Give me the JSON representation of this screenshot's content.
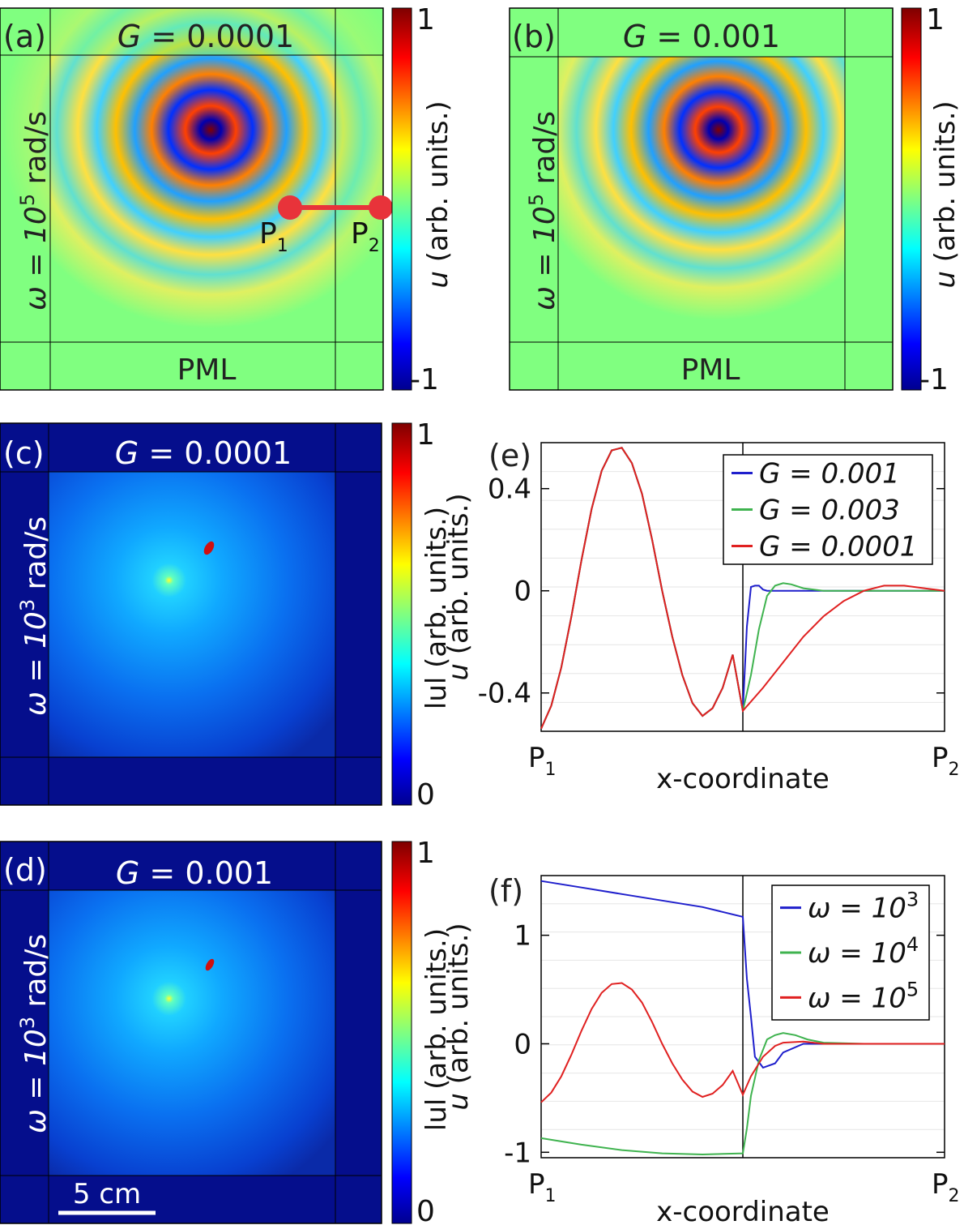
{
  "panels": {
    "a": {
      "label": "(a)",
      "title_var": "G",
      "title_rest": " = 0.0001",
      "omega_label": "ω = 10",
      "omega_exp": "5",
      "omega_unit": " rad/s",
      "pml_label": "PML",
      "p1": "P",
      "p1_sub": "1",
      "p2": "P",
      "p2_sub": "2"
    },
    "b": {
      "label": "(b)",
      "title_var": "G",
      "title_rest": " = 0.001",
      "omega_label": "ω = 10",
      "omega_exp": "5",
      "omega_unit": " rad/s",
      "pml_label": "PML"
    },
    "c": {
      "label": "(c)",
      "title_var": "G",
      "title_rest": " = 0.0001",
      "omega_label": "ω = 10",
      "omega_exp": "3",
      "omega_unit": " rad/s"
    },
    "d": {
      "label": "(d)",
      "title_var": "G",
      "title_rest": " = 0.001",
      "omega_label": "ω = 10",
      "omega_exp": "3",
      "omega_unit": " rad/s",
      "scalebar": "5 cm"
    }
  },
  "colorbars": {
    "a": {
      "max": "1",
      "min": "-1",
      "label_var": "u",
      "label_rest": " (arb. units.)"
    },
    "b": {
      "max": "1",
      "min": "-1",
      "label_var": "u",
      "label_rest": " (arb. units.)"
    },
    "c": {
      "max": "1",
      "min": "0",
      "label": "lul (arb. units.)"
    },
    "d": {
      "max": "1",
      "min": "0",
      "label": "lul (arb. units.)"
    }
  },
  "colors": {
    "jet_dark_red": "#7f0000",
    "jet_red": "#ff0000",
    "jet_yellow": "#ffff00",
    "jet_cyan": "#00ffff",
    "jet_blue": "#0000ff",
    "jet_dark_blue": "#00008f",
    "pml_green": "#80ff80",
    "marker_red": "#e8333a"
  },
  "chart_data": [
    {
      "panel": "e",
      "type": "line",
      "label": "(e)",
      "xlabel": "x-coordinate",
      "ylabel": "u (arb. units.)",
      "x_tick_labels": [
        {
          "main": "P",
          "sub": "1"
        },
        {
          "main": "P",
          "sub": "2"
        }
      ],
      "xlim": [
        0,
        1
      ],
      "ylim": [
        -0.55,
        0.58
      ],
      "yticks": [
        0.4,
        0,
        -0.4
      ],
      "ytick_labels": [
        "0.4",
        "0",
        "-0.4"
      ],
      "legend_position": "top-right",
      "series": [
        {
          "name": "G = 0.001",
          "color": "#1f1fcc",
          "x": [
            0,
            0.025,
            0.05,
            0.075,
            0.1,
            0.125,
            0.15,
            0.175,
            0.2,
            0.225,
            0.25,
            0.275,
            0.3,
            0.325,
            0.35,
            0.375,
            0.4,
            0.425,
            0.45,
            0.475,
            0.5,
            0.51,
            0.52,
            0.53,
            0.54,
            0.55,
            0.56,
            0.57,
            0.6,
            0.65,
            0.7,
            0.8,
            0.9,
            1.0
          ],
          "y": [
            -0.54,
            -0.45,
            -0.3,
            -0.1,
            0.12,
            0.32,
            0.47,
            0.55,
            0.56,
            0.5,
            0.38,
            0.2,
            0.0,
            -0.18,
            -0.33,
            -0.44,
            -0.49,
            -0.46,
            -0.38,
            -0.25,
            -0.47,
            -0.14,
            0.015,
            0.02,
            0.02,
            0.005,
            0.0,
            0.0,
            0.0,
            0.0,
            0.0,
            0.0,
            0.0,
            0.0
          ]
        },
        {
          "name": "G = 0.003",
          "color": "#3fb34f",
          "x": [
            0,
            0.025,
            0.05,
            0.075,
            0.1,
            0.125,
            0.15,
            0.175,
            0.2,
            0.225,
            0.25,
            0.275,
            0.3,
            0.325,
            0.35,
            0.375,
            0.4,
            0.425,
            0.45,
            0.475,
            0.5,
            0.52,
            0.54,
            0.56,
            0.58,
            0.6,
            0.62,
            0.65,
            0.7,
            0.75,
            0.8,
            0.9,
            1.0
          ],
          "y": [
            -0.54,
            -0.45,
            -0.3,
            -0.1,
            0.12,
            0.32,
            0.47,
            0.55,
            0.56,
            0.5,
            0.38,
            0.2,
            0.0,
            -0.18,
            -0.33,
            -0.44,
            -0.49,
            -0.46,
            -0.38,
            -0.25,
            -0.47,
            -0.33,
            -0.15,
            -0.02,
            0.02,
            0.03,
            0.025,
            0.01,
            0.0,
            0.0,
            0.0,
            0.0,
            0.0
          ]
        },
        {
          "name": "G = 0.0001",
          "color": "#e02020",
          "x": [
            0,
            0.025,
            0.05,
            0.075,
            0.1,
            0.125,
            0.15,
            0.175,
            0.2,
            0.225,
            0.25,
            0.275,
            0.3,
            0.325,
            0.35,
            0.375,
            0.4,
            0.425,
            0.45,
            0.475,
            0.5,
            0.55,
            0.6,
            0.65,
            0.7,
            0.75,
            0.8,
            0.85,
            0.9,
            0.95,
            1.0
          ],
          "y": [
            -0.54,
            -0.45,
            -0.3,
            -0.1,
            0.12,
            0.32,
            0.47,
            0.55,
            0.56,
            0.5,
            0.38,
            0.2,
            0.0,
            -0.18,
            -0.33,
            -0.44,
            -0.49,
            -0.46,
            -0.38,
            -0.25,
            -0.47,
            -0.38,
            -0.28,
            -0.18,
            -0.1,
            -0.04,
            0.0,
            0.02,
            0.02,
            0.01,
            0.0
          ]
        }
      ]
    },
    {
      "panel": "f",
      "type": "line",
      "label": "(f)",
      "xlabel": "x-coordinate",
      "ylabel": "u (arb. units.)",
      "x_tick_labels": [
        {
          "main": "P",
          "sub": "1"
        },
        {
          "main": "P",
          "sub": "2"
        }
      ],
      "xlim": [
        0,
        1
      ],
      "ylim": [
        -1.05,
        1.55
      ],
      "yticks": [
        1,
        0,
        -1
      ],
      "ytick_labels": [
        "1",
        "0",
        "-1"
      ],
      "legend_position": "top-right",
      "legend_exponents": [
        "3",
        "4",
        "5"
      ],
      "series": [
        {
          "name": "ω = 10",
          "exp": "3",
          "color": "#1f1fcc",
          "x": [
            0,
            0.1,
            0.2,
            0.3,
            0.4,
            0.5,
            0.51,
            0.52,
            0.53,
            0.55,
            0.58,
            0.6,
            0.65,
            0.7,
            0.8,
            0.9,
            1.0
          ],
          "y": [
            1.5,
            1.44,
            1.38,
            1.32,
            1.26,
            1.17,
            0.6,
            0.25,
            -0.12,
            -0.22,
            -0.18,
            -0.08,
            0.0,
            0.0,
            0.0,
            0.0,
            0.0
          ]
        },
        {
          "name": "ω = 10",
          "exp": "4",
          "color": "#3fb34f",
          "x": [
            0,
            0.1,
            0.2,
            0.3,
            0.4,
            0.5,
            0.51,
            0.52,
            0.54,
            0.56,
            0.58,
            0.6,
            0.63,
            0.66,
            0.7,
            0.8,
            0.9,
            1.0
          ],
          "y": [
            -0.87,
            -0.93,
            -0.98,
            -1.01,
            -1.02,
            -1.01,
            -0.78,
            -0.48,
            -0.15,
            0.04,
            0.08,
            0.1,
            0.08,
            0.04,
            0.01,
            0.0,
            0.0,
            0.0
          ]
        },
        {
          "name": "ω = 10",
          "exp": "5",
          "color": "#e02020",
          "x": [
            0,
            0.025,
            0.05,
            0.075,
            0.1,
            0.125,
            0.15,
            0.175,
            0.2,
            0.225,
            0.25,
            0.275,
            0.3,
            0.325,
            0.35,
            0.375,
            0.4,
            0.425,
            0.45,
            0.475,
            0.5,
            0.52,
            0.55,
            0.58,
            0.6,
            0.65,
            0.7,
            0.8,
            0.9,
            1.0
          ],
          "y": [
            -0.54,
            -0.45,
            -0.3,
            -0.1,
            0.12,
            0.32,
            0.47,
            0.55,
            0.56,
            0.5,
            0.38,
            0.2,
            0.0,
            -0.18,
            -0.33,
            -0.44,
            -0.49,
            -0.46,
            -0.38,
            -0.25,
            -0.47,
            -0.3,
            -0.12,
            -0.02,
            0.01,
            0.02,
            0.0,
            0.0,
            0.0,
            0.0
          ]
        }
      ]
    }
  ]
}
